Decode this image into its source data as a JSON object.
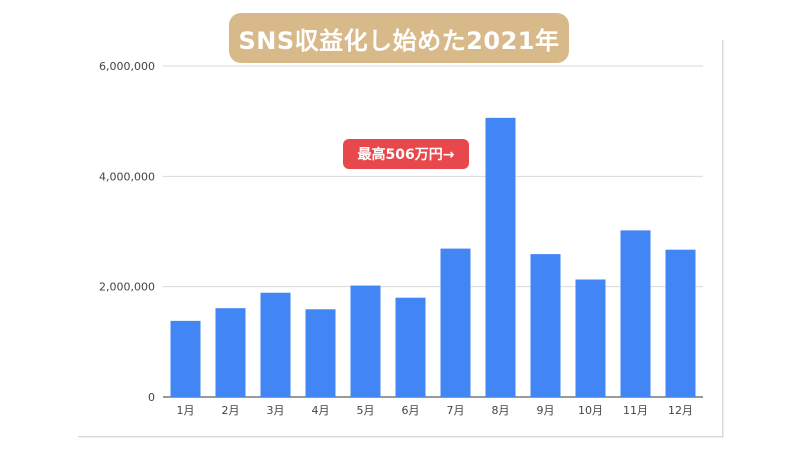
{
  "chart_data": {
    "type": "bar",
    "title": "SNS収益化し始めた2021年",
    "categories": [
      "1月",
      "2月",
      "3月",
      "4月",
      "5月",
      "6月",
      "7月",
      "8月",
      "9月",
      "10月",
      "11月",
      "12月"
    ],
    "values": [
      1380000,
      1610000,
      1890000,
      1590000,
      2020000,
      1800000,
      2690000,
      5060000,
      2590000,
      2130000,
      3020000,
      2670000
    ],
    "ylim": [
      0,
      6000000
    ],
    "y_ticks": [
      "0",
      "2,000,000",
      "4,000,000",
      "6,000,000"
    ],
    "y_tick_values": [
      0,
      2000000,
      4000000,
      6000000
    ],
    "grid": true,
    "bar_color": "#4285f4",
    "annotation": "最高506万円→"
  },
  "colors": {
    "title_bg": "#d8b98a",
    "callout_bg": "#e8484b"
  }
}
